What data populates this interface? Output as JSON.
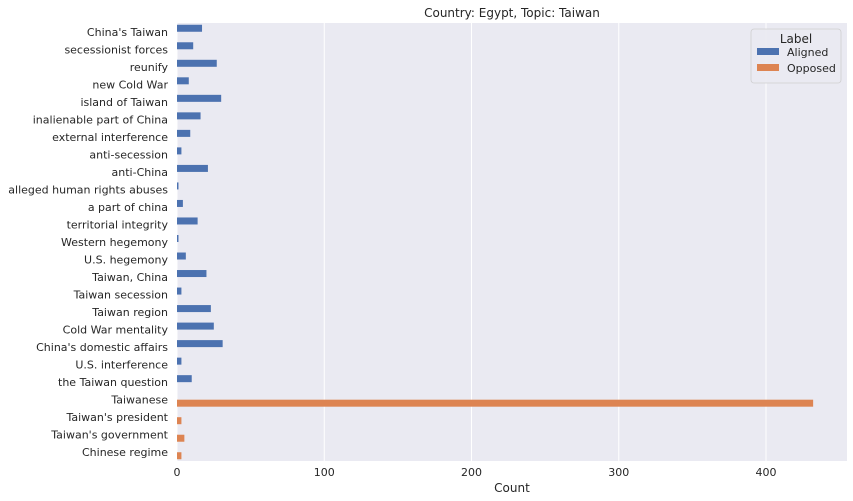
{
  "chart_data": {
    "type": "bar",
    "orientation": "horizontal",
    "title": "Country: Egypt, Topic: Taiwan",
    "xlabel": "Count",
    "ylabel": "",
    "xlim": [
      0,
      455
    ],
    "xticks": [
      0,
      100,
      200,
      300,
      400
    ],
    "grid": true,
    "legend": {
      "title": "Label",
      "position": "top-right"
    },
    "categories": [
      "China's Taiwan",
      "secessionist forces",
      "reunify",
      "new Cold War",
      "island of Taiwan",
      "inalienable part of China",
      "external interference",
      "anti-secession",
      "anti-China",
      "alleged human rights abuses",
      "a part of china",
      "territorial integrity",
      "Western hegemony",
      "U.S. hegemony",
      "Taiwan, China",
      "Taiwan secession",
      "Taiwan region",
      "Cold War mentality",
      "China's domestic affairs",
      "U.S. interference",
      "the Taiwan question",
      "Taiwanese",
      "Taiwan's president",
      "Taiwan's government",
      "Chinese regime"
    ],
    "series": [
      {
        "name": "Aligned",
        "color": "#4c72b0",
        "values": [
          17,
          11,
          27,
          8,
          30,
          16,
          9,
          3,
          21,
          1,
          4,
          14,
          1,
          6,
          20,
          3,
          23,
          25,
          31,
          3,
          10,
          0,
          0,
          0,
          0
        ]
      },
      {
        "name": "Opposed",
        "color": "#dd8452",
        "values": [
          0,
          0,
          0,
          0,
          0,
          0,
          0,
          0,
          0,
          0,
          0,
          0,
          0,
          0,
          0,
          0,
          0,
          0,
          0,
          0,
          0,
          432,
          3,
          5,
          3
        ]
      }
    ],
    "background_color": "#eaeaf2"
  }
}
